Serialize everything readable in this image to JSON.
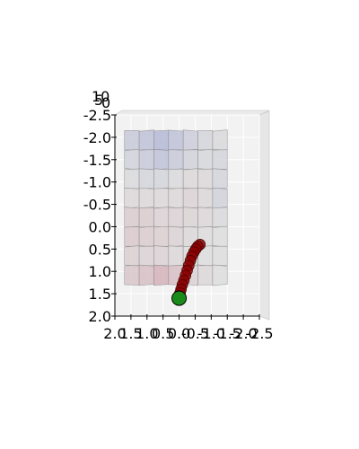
{
  "chart_data": {
    "type": "scatter",
    "title": "",
    "projection": "3d-top-down",
    "xlabel": "",
    "ylabel": "",
    "xlim": [
      2.0,
      -2.5
    ],
    "ylim": [
      -2.5,
      2.0
    ],
    "x_ticks": [
      "2.0",
      "1.5",
      "1.0",
      "0.5",
      "0.0",
      "-0.5",
      "-1.0",
      "-1.5",
      "-2.0",
      "-2.5"
    ],
    "y_ticks": [
      "-2.5",
      "-2.0",
      "-1.5",
      "-1.0",
      "-0.5",
      "0.0",
      "0.5",
      "1.0",
      "1.5",
      "2.0"
    ],
    "z_ticks": [
      "10",
      "5",
      "0"
    ],
    "grid": true,
    "surface": {
      "colormap": "coolwarm",
      "x_range": [
        -1.5,
        1.7
      ],
      "y_range": [
        -2.15,
        1.3
      ],
      "values": [
        [
          -0.25,
          -0.35,
          -0.45,
          -0.35,
          -0.2,
          -0.1,
          -0.05
        ],
        [
          -0.15,
          -0.25,
          -0.35,
          -0.25,
          -0.15,
          -0.08,
          -0.1
        ],
        [
          -0.05,
          -0.1,
          -0.1,
          -0.05,
          0.05,
          0.05,
          -0.1
        ],
        [
          0.05,
          0.05,
          0.05,
          0.05,
          0.1,
          0.05,
          -0.15
        ],
        [
          0.15,
          0.15,
          0.1,
          0.1,
          0.08,
          0.05,
          -0.05
        ],
        [
          0.18,
          0.15,
          0.12,
          0.1,
          0.05,
          0.02,
          0.0
        ],
        [
          0.12,
          0.1,
          0.1,
          0.05,
          0.02,
          0.0,
          0.0
        ],
        [
          0.2,
          0.25,
          0.35,
          0.25,
          0.1,
          0.05,
          0.0
        ]
      ]
    },
    "trajectory": {
      "color": "#8b0000",
      "points": [
        {
          "x": -0.65,
          "y": 0.4
        },
        {
          "x": -0.58,
          "y": 0.44
        },
        {
          "x": -0.52,
          "y": 0.5
        },
        {
          "x": -0.46,
          "y": 0.57
        },
        {
          "x": -0.4,
          "y": 0.66
        },
        {
          "x": -0.35,
          "y": 0.76
        },
        {
          "x": -0.3,
          "y": 0.87
        },
        {
          "x": -0.25,
          "y": 0.98
        },
        {
          "x": -0.2,
          "y": 1.09
        },
        {
          "x": -0.15,
          "y": 1.2
        },
        {
          "x": -0.1,
          "y": 1.3
        },
        {
          "x": -0.06,
          "y": 1.4
        },
        {
          "x": -0.03,
          "y": 1.48
        },
        {
          "x": 0.0,
          "y": 1.55
        }
      ]
    },
    "start_point": {
      "x": 0.0,
      "y": 1.6,
      "color": "#1a8a1a"
    }
  }
}
